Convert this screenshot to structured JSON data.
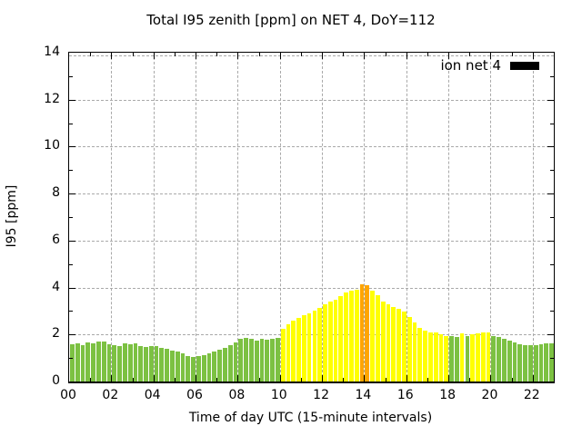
{
  "window": {
    "background_color": "#ffffff"
  },
  "chart_data": {
    "type": "bar",
    "title": "Total I95 zenith [ppm] on NET 4, DoY=112",
    "xlabel": "Time of day UTC (15-minute intervals)",
    "ylabel": "I95 [ppm]",
    "ylim": [
      0,
      14
    ],
    "xlim_hours": [
      0,
      23
    ],
    "grid": true,
    "grid_style": "dashed-gray",
    "interval_minutes": 15,
    "y_tick_labels": [
      "0",
      "2",
      "4",
      "6",
      "8",
      "10",
      "12",
      "14"
    ],
    "x_tick_labels": [
      "00",
      "02",
      "04",
      "06",
      "08",
      "10",
      "12",
      "14",
      "16",
      "18",
      "20",
      "22"
    ],
    "legend": {
      "label": "ion net 4",
      "swatch_color": "#000000",
      "position": "top-right-inside"
    },
    "colors": {
      "green": "#7cc142",
      "yellow": "#ffff00",
      "orange": "#ffa500"
    },
    "point_format": [
      "time_utc",
      "i95_ppm",
      "color_key"
    ],
    "points": [
      [
        "00:00",
        1.6,
        "green"
      ],
      [
        "00:15",
        1.62,
        "green"
      ],
      [
        "00:30",
        1.56,
        "green"
      ],
      [
        "00:45",
        1.66,
        "green"
      ],
      [
        "01:00",
        1.62,
        "green"
      ],
      [
        "01:15",
        1.69,
        "green"
      ],
      [
        "01:30",
        1.71,
        "green"
      ],
      [
        "01:45",
        1.58,
        "green"
      ],
      [
        "02:00",
        1.54,
        "green"
      ],
      [
        "02:15",
        1.51,
        "green"
      ],
      [
        "02:30",
        1.63,
        "green"
      ],
      [
        "02:45",
        1.57,
        "green"
      ],
      [
        "03:00",
        1.61,
        "green"
      ],
      [
        "03:15",
        1.5,
        "green"
      ],
      [
        "03:30",
        1.48,
        "green"
      ],
      [
        "03:45",
        1.51,
        "green"
      ],
      [
        "04:00",
        1.49,
        "green"
      ],
      [
        "04:15",
        1.45,
        "green"
      ],
      [
        "04:30",
        1.4,
        "green"
      ],
      [
        "04:45",
        1.33,
        "green"
      ],
      [
        "05:00",
        1.28,
        "green"
      ],
      [
        "05:15",
        1.2,
        "green"
      ],
      [
        "05:30",
        1.1,
        "green"
      ],
      [
        "05:45",
        1.04,
        "green"
      ],
      [
        "06:00",
        1.1,
        "green"
      ],
      [
        "06:15",
        1.13,
        "green"
      ],
      [
        "06:30",
        1.21,
        "green"
      ],
      [
        "06:45",
        1.28,
        "green"
      ],
      [
        "07:00",
        1.35,
        "green"
      ],
      [
        "07:15",
        1.43,
        "green"
      ],
      [
        "07:30",
        1.53,
        "green"
      ],
      [
        "07:45",
        1.67,
        "green"
      ],
      [
        "08:00",
        1.8,
        "green"
      ],
      [
        "08:15",
        1.84,
        "green"
      ],
      [
        "08:30",
        1.82,
        "green"
      ],
      [
        "08:45",
        1.74,
        "green"
      ],
      [
        "09:00",
        1.8,
        "green"
      ],
      [
        "09:15",
        1.78,
        "green"
      ],
      [
        "09:30",
        1.82,
        "green"
      ],
      [
        "09:45",
        1.86,
        "green"
      ],
      [
        "10:00",
        2.25,
        "yellow"
      ],
      [
        "10:15",
        2.45,
        "yellow"
      ],
      [
        "10:30",
        2.6,
        "yellow"
      ],
      [
        "10:45",
        2.72,
        "yellow"
      ],
      [
        "11:00",
        2.82,
        "yellow"
      ],
      [
        "11:15",
        2.92,
        "yellow"
      ],
      [
        "11:30",
        3.0,
        "yellow"
      ],
      [
        "11:45",
        3.12,
        "yellow"
      ],
      [
        "12:00",
        3.3,
        "yellow"
      ],
      [
        "12:15",
        3.42,
        "yellow"
      ],
      [
        "12:30",
        3.48,
        "yellow"
      ],
      [
        "12:45",
        3.65,
        "yellow"
      ],
      [
        "13:00",
        3.78,
        "yellow"
      ],
      [
        "13:15",
        3.88,
        "yellow"
      ],
      [
        "13:30",
        3.92,
        "yellow"
      ],
      [
        "13:45",
        4.15,
        "orange"
      ],
      [
        "14:00",
        4.1,
        "orange"
      ],
      [
        "14:15",
        3.85,
        "yellow"
      ],
      [
        "14:30",
        3.67,
        "yellow"
      ],
      [
        "14:45",
        3.42,
        "yellow"
      ],
      [
        "15:00",
        3.29,
        "yellow"
      ],
      [
        "15:15",
        3.19,
        "yellow"
      ],
      [
        "15:30",
        3.1,
        "yellow"
      ],
      [
        "15:45",
        2.97,
        "yellow"
      ],
      [
        "16:00",
        2.74,
        "yellow"
      ],
      [
        "16:15",
        2.52,
        "yellow"
      ],
      [
        "16:30",
        2.29,
        "yellow"
      ],
      [
        "16:45",
        2.16,
        "yellow"
      ],
      [
        "17:00",
        2.09,
        "yellow"
      ],
      [
        "17:15",
        2.07,
        "yellow"
      ],
      [
        "17:30",
        2.0,
        "yellow"
      ],
      [
        "17:45",
        1.95,
        "yellow"
      ],
      [
        "18:00",
        1.93,
        "green"
      ],
      [
        "18:15",
        1.9,
        "green"
      ],
      [
        "18:30",
        2.05,
        "yellow"
      ],
      [
        "18:45",
        1.92,
        "green"
      ],
      [
        "19:00",
        2.02,
        "yellow"
      ],
      [
        "19:15",
        2.05,
        "yellow"
      ],
      [
        "19:30",
        2.07,
        "yellow"
      ],
      [
        "19:45",
        2.1,
        "yellow"
      ],
      [
        "20:00",
        1.94,
        "green"
      ],
      [
        "20:15",
        1.88,
        "green"
      ],
      [
        "20:30",
        1.81,
        "green"
      ],
      [
        "20:45",
        1.73,
        "green"
      ],
      [
        "21:00",
        1.66,
        "green"
      ],
      [
        "21:15",
        1.6,
        "green"
      ],
      [
        "21:30",
        1.56,
        "green"
      ],
      [
        "21:45",
        1.53,
        "green"
      ],
      [
        "22:00",
        1.56,
        "green"
      ],
      [
        "22:15",
        1.59,
        "green"
      ],
      [
        "22:30",
        1.61,
        "green"
      ],
      [
        "22:45",
        1.64,
        "green"
      ]
    ]
  }
}
